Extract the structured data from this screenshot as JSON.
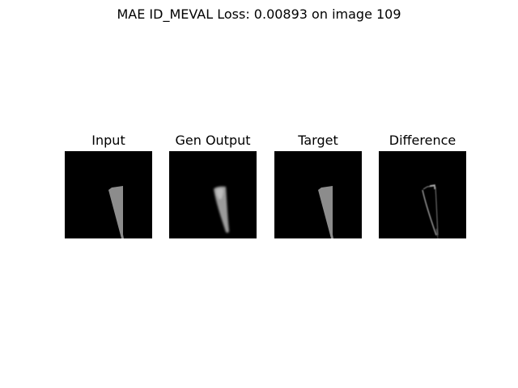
{
  "figure": {
    "suptitle": "MAE ID_MEVAL Loss: 0.00893 on image 109",
    "background": "#ffffff"
  },
  "panels": [
    {
      "title": "Input",
      "image": "binary-mask-sliver",
      "colormap": "gray"
    },
    {
      "title": "Gen Output",
      "image": "blurred-mask-sliver",
      "colormap": "gray"
    },
    {
      "title": "Target",
      "image": "binary-mask-sliver",
      "colormap": "gray"
    },
    {
      "title": "Difference",
      "image": "edge-difference-outline",
      "colormap": "gray"
    }
  ],
  "colors": {
    "image_background": "#000000",
    "mask_fill": "#8c8c8c",
    "gen_fill": "#a0a0a0",
    "diff_edge": "#9a9a9a"
  }
}
